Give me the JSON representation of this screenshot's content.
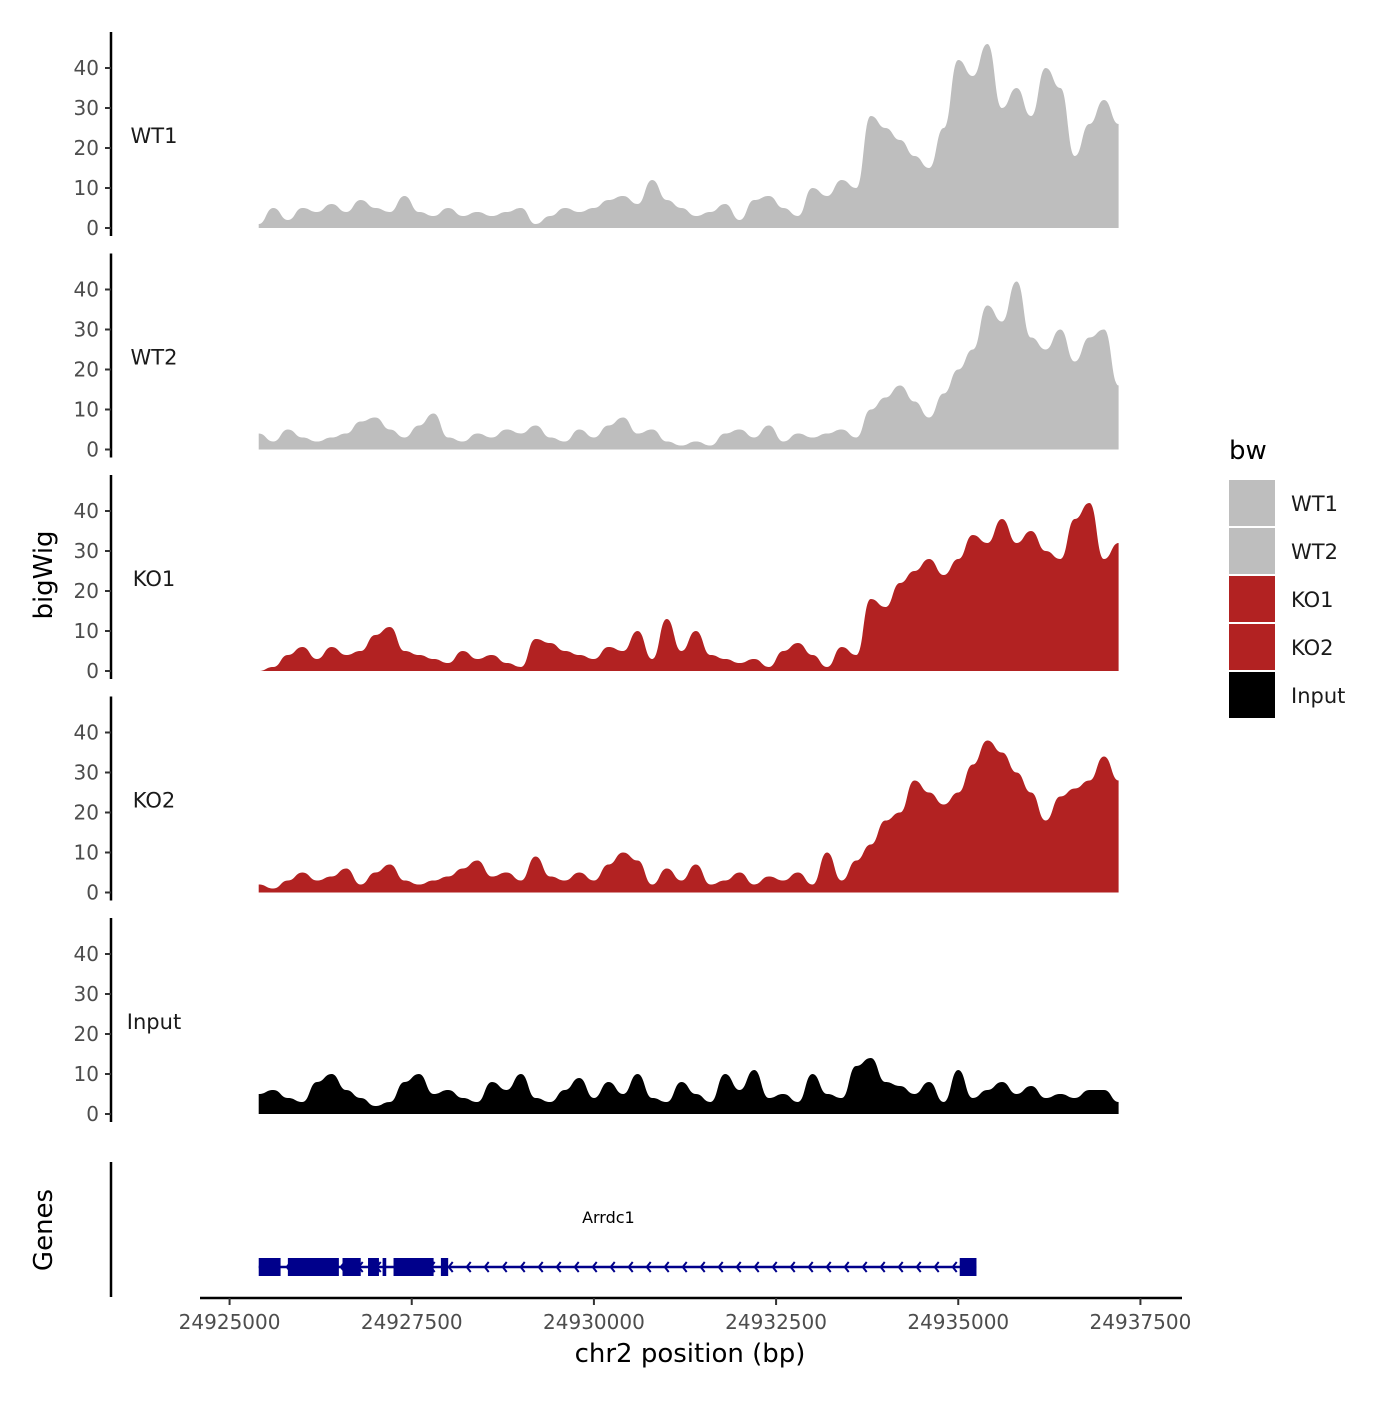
{
  "chart_data": {
    "type": "area",
    "title": "",
    "ylabel": "bigWig",
    "xlabel": "chr2 position (bp)",
    "genes_label": "Genes",
    "xlim": [
      24924800,
      24937700
    ],
    "ylim": [
      0,
      50
    ],
    "yticks": [
      0,
      10,
      20,
      30,
      40
    ],
    "xticks": [
      24925000,
      24927500,
      24930000,
      24932500,
      24935000,
      24937500
    ],
    "xtick_labels": [
      "24925000",
      "24927500",
      "24930000",
      "24932500",
      "24935000",
      "24937500"
    ],
    "legend": {
      "title": "bw",
      "position": "right",
      "entries": [
        {
          "label": "WT1",
          "color": "#bebebe"
        },
        {
          "label": "WT2",
          "color": "#bebebe"
        },
        {
          "label": "KO1",
          "color": "#b22222"
        },
        {
          "label": "KO2",
          "color": "#b22222"
        },
        {
          "label": "Input",
          "color": "#000000"
        }
      ]
    },
    "series": [
      {
        "name": "WT1",
        "color": "#bebebe",
        "x": [
          24925400,
          24925600,
          24925800,
          24926000,
          24926200,
          24926400,
          24926600,
          24926800,
          24927000,
          24927200,
          24927400,
          24927600,
          24927800,
          24928000,
          24928200,
          24928400,
          24928600,
          24928800,
          24929000,
          24929200,
          24929400,
          24929600,
          24929800,
          24930000,
          24930200,
          24930400,
          24930600,
          24930800,
          24931000,
          24931200,
          24931400,
          24931600,
          24931800,
          24932000,
          24932200,
          24932400,
          24932600,
          24932800,
          24933000,
          24933200,
          24933400,
          24933600,
          24933800,
          24934000,
          24934200,
          24934400,
          24934600,
          24934800,
          24935000,
          24935200,
          24935400,
          24935600,
          24935800,
          24936000,
          24936200,
          24936400,
          24936600,
          24936800,
          24937000,
          24937200
        ],
        "values": [
          1,
          5,
          2,
          5,
          4,
          6,
          4,
          7,
          5,
          4,
          8,
          4,
          3,
          5,
          3,
          4,
          3,
          4,
          5,
          1,
          3,
          5,
          4,
          5,
          7,
          8,
          6,
          12,
          7,
          5,
          3,
          4,
          6,
          2,
          7,
          8,
          5,
          3,
          10,
          8,
          12,
          10,
          28,
          25,
          22,
          18,
          15,
          25,
          42,
          38,
          46,
          30,
          35,
          28,
          40,
          35,
          18,
          26,
          32,
          26
        ]
      },
      {
        "name": "WT2",
        "color": "#bebebe",
        "x": [
          24925400,
          24925600,
          24925800,
          24926000,
          24926200,
          24926400,
          24926600,
          24926800,
          24927000,
          24927200,
          24927400,
          24927600,
          24927800,
          24928000,
          24928200,
          24928400,
          24928600,
          24928800,
          24929000,
          24929200,
          24929400,
          24929600,
          24929800,
          24930000,
          24930200,
          24930400,
          24930600,
          24930800,
          24931000,
          24931200,
          24931400,
          24931600,
          24931800,
          24932000,
          24932200,
          24932400,
          24932600,
          24932800,
          24933000,
          24933200,
          24933400,
          24933600,
          24933800,
          24934000,
          24934200,
          24934400,
          24934600,
          24934800,
          24935000,
          24935200,
          24935400,
          24935600,
          24935800,
          24936000,
          24936200,
          24936400,
          24936600,
          24936800,
          24937000,
          24937200
        ],
        "values": [
          4,
          2,
          5,
          3,
          2,
          3,
          4,
          7,
          8,
          5,
          3,
          6,
          9,
          3,
          2,
          4,
          3,
          5,
          4,
          6,
          3,
          2,
          5,
          3,
          6,
          8,
          4,
          5,
          2,
          1,
          2,
          1,
          4,
          5,
          3,
          6,
          2,
          4,
          3,
          4,
          5,
          3,
          10,
          13,
          16,
          12,
          8,
          14,
          20,
          25,
          36,
          32,
          42,
          28,
          25,
          30,
          22,
          28,
          30,
          16
        ]
      },
      {
        "name": "KO1",
        "color": "#b22222",
        "x": [
          24925400,
          24925600,
          24925800,
          24926000,
          24926200,
          24926400,
          24926600,
          24926800,
          24927000,
          24927200,
          24927400,
          24927600,
          24927800,
          24928000,
          24928200,
          24928400,
          24928600,
          24928800,
          24929000,
          24929200,
          24929400,
          24929600,
          24929800,
          24930000,
          24930200,
          24930400,
          24930600,
          24930800,
          24931000,
          24931200,
          24931400,
          24931600,
          24931800,
          24932000,
          24932200,
          24932400,
          24932600,
          24932800,
          24933000,
          24933200,
          24933400,
          24933600,
          24933800,
          24934000,
          24934200,
          24934400,
          24934600,
          24934800,
          24935000,
          24935200,
          24935400,
          24935600,
          24935800,
          24936000,
          24936200,
          24936400,
          24936600,
          24936800,
          24937000,
          24937200
        ],
        "values": [
          0,
          1,
          4,
          6,
          3,
          6,
          4,
          5,
          9,
          11,
          5,
          4,
          3,
          2,
          5,
          3,
          4,
          2,
          1,
          8,
          7,
          5,
          4,
          3,
          6,
          5,
          10,
          3,
          13,
          5,
          10,
          4,
          3,
          2,
          3,
          1,
          5,
          7,
          4,
          1,
          6,
          4,
          18,
          16,
          22,
          25,
          28,
          24,
          28,
          34,
          32,
          38,
          32,
          35,
          30,
          28,
          38,
          42,
          28,
          32
        ]
      },
      {
        "name": "KO2",
        "color": "#b22222",
        "x": [
          24925400,
          24925600,
          24925800,
          24926000,
          24926200,
          24926400,
          24926600,
          24926800,
          24927000,
          24927200,
          24927400,
          24927600,
          24927800,
          24928000,
          24928200,
          24928400,
          24928600,
          24928800,
          24929000,
          24929200,
          24929400,
          24929600,
          24929800,
          24930000,
          24930200,
          24930400,
          24930600,
          24930800,
          24931000,
          24931200,
          24931400,
          24931600,
          24931800,
          24932000,
          24932200,
          24932400,
          24932600,
          24932800,
          24933000,
          24933200,
          24933400,
          24933600,
          24933800,
          24934000,
          24934200,
          24934400,
          24934600,
          24934800,
          24935000,
          24935200,
          24935400,
          24935600,
          24935800,
          24936000,
          24936200,
          24936400,
          24936600,
          24936800,
          24937000,
          24937200
        ],
        "values": [
          2,
          1,
          3,
          5,
          3,
          4,
          6,
          2,
          5,
          7,
          3,
          2,
          3,
          4,
          6,
          8,
          4,
          5,
          3,
          9,
          4,
          3,
          5,
          3,
          7,
          10,
          8,
          2,
          6,
          3,
          7,
          2,
          3,
          5,
          2,
          4,
          3,
          5,
          2,
          10,
          3,
          8,
          12,
          18,
          20,
          28,
          25,
          22,
          25,
          32,
          38,
          35,
          30,
          25,
          18,
          24,
          26,
          28,
          34,
          28
        ]
      },
      {
        "name": "Input",
        "color": "#000000",
        "x": [
          24925400,
          24925600,
          24925800,
          24926000,
          24926200,
          24926400,
          24926600,
          24926800,
          24927000,
          24927200,
          24927400,
          24927600,
          24927800,
          24928000,
          24928200,
          24928400,
          24928600,
          24928800,
          24929000,
          24929200,
          24929400,
          24929600,
          24929800,
          24930000,
          24930200,
          24930400,
          24930600,
          24930800,
          24931000,
          24931200,
          24931400,
          24931600,
          24931800,
          24932000,
          24932200,
          24932400,
          24932600,
          24932800,
          24933000,
          24933200,
          24933400,
          24933600,
          24933800,
          24934000,
          24934200,
          24934400,
          24934600,
          24934800,
          24935000,
          24935200,
          24935400,
          24935600,
          24935800,
          24936000,
          24936200,
          24936400,
          24936600,
          24936800,
          24937000,
          24937200
        ],
        "values": [
          5,
          6,
          4,
          3,
          8,
          10,
          6,
          4,
          2,
          3,
          8,
          10,
          5,
          6,
          4,
          3,
          8,
          6,
          10,
          4,
          3,
          6,
          9,
          4,
          8,
          5,
          10,
          4,
          3,
          8,
          5,
          3,
          10,
          6,
          11,
          4,
          5,
          3,
          10,
          5,
          4,
          12,
          14,
          8,
          7,
          5,
          8,
          3,
          11,
          4,
          6,
          8,
          5,
          7,
          4,
          5,
          4,
          6,
          6,
          3
        ]
      }
    ],
    "genes": [
      {
        "name": "Arrdc1",
        "strand": "-",
        "start": 24925400,
        "end": 24935250,
        "exons": [
          {
            "start": 24925400,
            "end": 24925700
          },
          {
            "start": 24925800,
            "end": 24926500
          },
          {
            "start": 24926550,
            "end": 24926800
          },
          {
            "start": 24926900,
            "end": 24927050
          },
          {
            "start": 24927100,
            "end": 24927150
          },
          {
            "start": 24927250,
            "end": 24927800
          },
          {
            "start": 24927900,
            "end": 24928000
          },
          {
            "start": 24935020,
            "end": 24935250
          }
        ]
      }
    ]
  }
}
